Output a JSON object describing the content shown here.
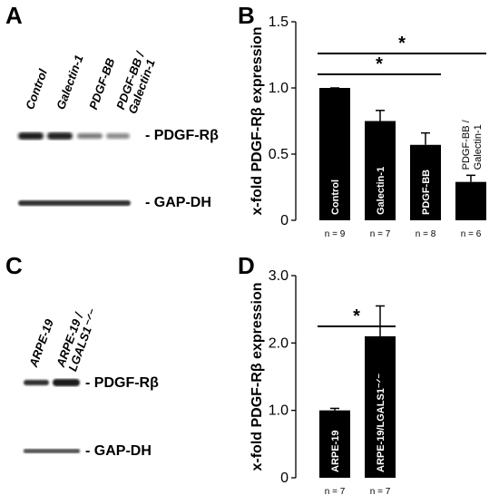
{
  "panels": {
    "A": {
      "letter": "A",
      "lanes": [
        "Control",
        "Galectin-1",
        "PDGF-BB",
        "PDGF-BB /\nGalectin-1"
      ],
      "bands": [
        "- PDGF-Rβ",
        "- GAP-DH"
      ]
    },
    "C": {
      "letter": "C",
      "lanes": [
        "ARPE-19",
        "ARPE-19 /\nLGALS1⁻ᐟ⁻"
      ],
      "bands": [
        "- PDGF-Rβ",
        "- GAP-DH"
      ]
    },
    "B": {
      "letter": "B"
    },
    "D": {
      "letter": "D"
    }
  },
  "chart_data": [
    {
      "id": "B",
      "type": "bar",
      "ylabel": "x-fold PDGF-Rβ expression",
      "ylim": [
        0,
        1.5
      ],
      "yticks": [
        "0",
        "0.5",
        "1.0",
        "1.5"
      ],
      "ytick_values": [
        0,
        0.5,
        1.0,
        1.5
      ],
      "categories": [
        "Control",
        "Galectin-1",
        "PDGF-BB",
        "PDGF-BB /\nGalectin-1"
      ],
      "values": [
        1.0,
        0.75,
        0.57,
        0.29
      ],
      "errors": [
        0.0,
        0.08,
        0.09,
        0.05
      ],
      "n_labels": [
        "n = 9",
        "n = 7",
        "n = 8",
        "n = 6"
      ],
      "significance": [
        {
          "from": 0,
          "to": 2,
          "label": "*"
        },
        {
          "from": 0,
          "to": 3,
          "label": "*"
        }
      ]
    },
    {
      "id": "D",
      "type": "bar",
      "ylabel": "x-fold PDGF-Rβ expression",
      "ylim": [
        0,
        3.0
      ],
      "yticks": [
        "0",
        "1.0",
        "2.0",
        "3.0"
      ],
      "ytick_values": [
        0,
        1.0,
        2.0,
        3.0
      ],
      "categories": [
        "ARPE-19",
        "ARPE-19/LGALS1⁻ᐟ⁻"
      ],
      "values": [
        1.0,
        2.1
      ],
      "errors": [
        0.03,
        0.45
      ],
      "n_labels": [
        "n = 7",
        "n = 7"
      ],
      "significance": [
        {
          "from": 0,
          "to": 1,
          "label": "*"
        }
      ]
    }
  ]
}
